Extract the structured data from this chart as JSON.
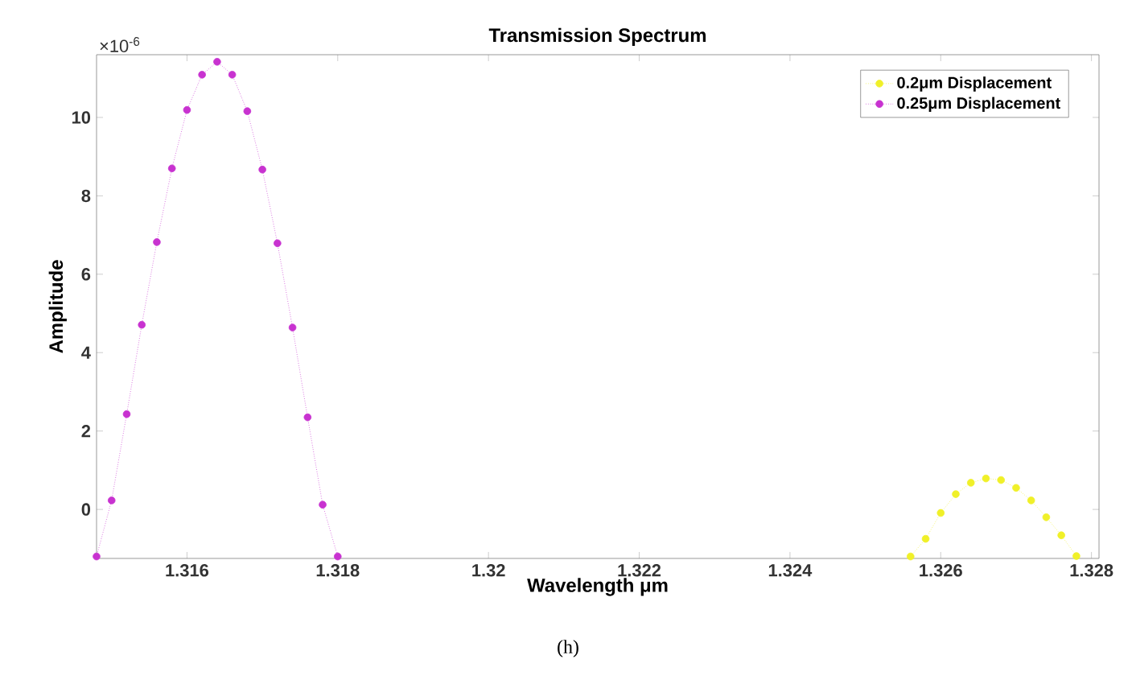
{
  "chart_data": {
    "type": "line",
    "title": "Transmission Spectrum",
    "xlabel": "Wavelength μm",
    "ylabel": "Amplitude",
    "annotations": [
      "×10$^{-6}$",
      "(h)"
    ],
    "xlim": [
      1.3148,
      1.3281
    ],
    "ylim": [
      -1.25,
      11.6
    ],
    "xticks": [
      1.316,
      1.318,
      1.32,
      1.322,
      1.324,
      1.326,
      1.328
    ],
    "yticks": [
      0,
      2,
      4,
      6,
      8,
      10
    ],
    "legend": "top right",
    "marker": "circle",
    "line_style": "dotted",
    "grid": false,
    "series": [
      {
        "name": "0.2μm Displacement",
        "color": "#f0f028",
        "x": [
          1.3256,
          1.3258,
          1.326,
          1.3262,
          1.3264,
          1.3266,
          1.3268,
          1.327,
          1.3272,
          1.3274,
          1.3276,
          1.3278
        ],
        "values": [
          -1.2,
          -0.75,
          -0.09,
          0.39,
          0.68,
          0.79,
          0.75,
          0.55,
          0.23,
          -0.2,
          -0.66,
          -1.19
        ]
      },
      {
        "name": "0.25μm  Displacement",
        "color": "#c832d0",
        "x": [
          1.3148,
          1.315,
          1.3152,
          1.3154,
          1.3156,
          1.3158,
          1.316,
          1.3162,
          1.3164,
          1.3166,
          1.3168,
          1.317,
          1.3172,
          1.3174,
          1.3176,
          1.3178,
          1.318
        ],
        "values": [
          -1.2,
          0.23,
          2.43,
          4.71,
          6.82,
          8.7,
          10.19,
          11.09,
          11.42,
          11.09,
          10.16,
          8.67,
          6.79,
          4.64,
          2.35,
          0.12,
          -1.2
        ]
      }
    ]
  }
}
